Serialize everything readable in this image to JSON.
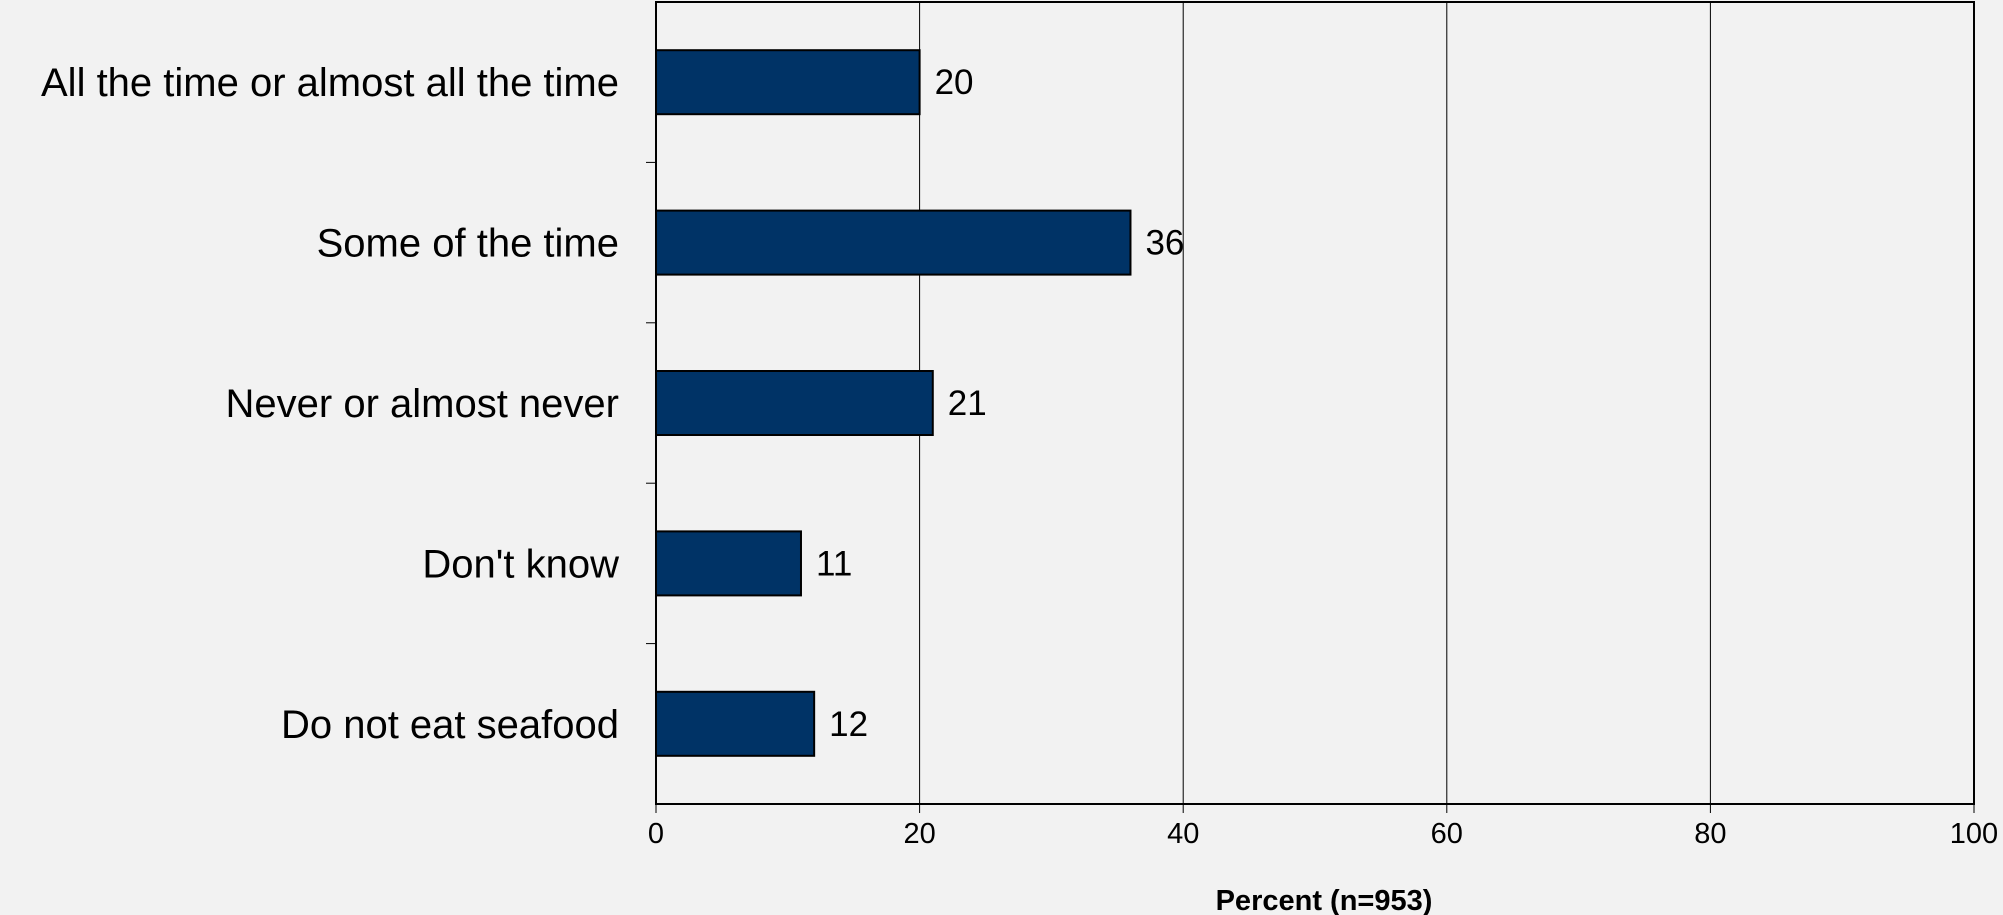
{
  "chart_data": {
    "type": "bar",
    "orientation": "horizontal",
    "categories": [
      "All the time or almost all the time",
      "Some of the time",
      "Never or almost never",
      "Don't know",
      "Do not eat seafood"
    ],
    "values": [
      20,
      36,
      21,
      11,
      12
    ],
    "data_labels": [
      "20",
      "36",
      "21",
      "11",
      "12"
    ],
    "title": "",
    "xlabel": "Percent (n=953)",
    "ylabel": "",
    "xlim": [
      0,
      100
    ],
    "xticks": [
      0,
      20,
      40,
      60,
      80,
      100
    ],
    "xtick_labels": [
      "0",
      "20",
      "40",
      "60",
      "80",
      "100"
    ],
    "grid": "vertical",
    "legend": "none",
    "colors": {
      "bar": "#003366",
      "bar_border": "#000000",
      "background": "#f2f2f2",
      "gridline": "#000000"
    }
  }
}
